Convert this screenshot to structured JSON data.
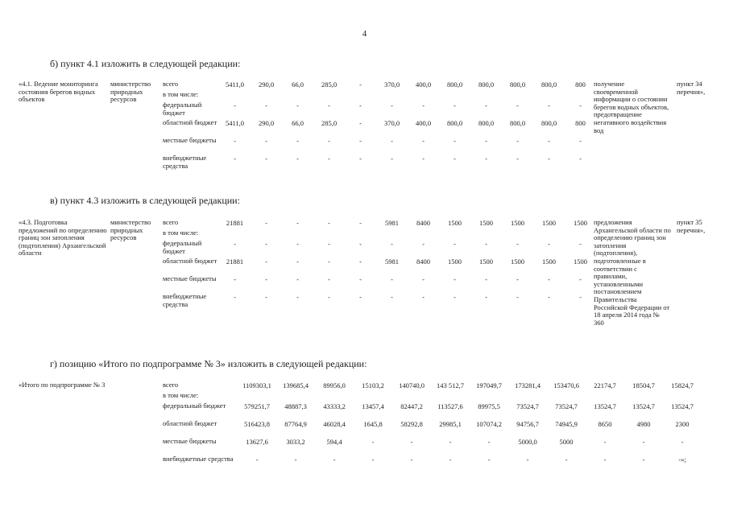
{
  "page_number": "4",
  "sections": [
    {
      "heading": "б) пункт 4.1 изложить в следующей редакции:"
    },
    {
      "heading": "в) пункт 4.3 изложить в следующей редакции:"
    },
    {
      "heading": "г) позицию «Итого по подпрограмме № 3» изложить в следующей редакции:"
    }
  ],
  "tables": [
    {
      "activity": "«4.1. Ведение мониторинга состояния берегов водных объектов",
      "executor": "министерство природных ресурсов",
      "rows": [
        {
          "label": "всего",
          "values": [
            "5411,0",
            "290,0",
            "66,0",
            "285,0",
            "-",
            "370,0",
            "400,0",
            "800,0",
            "800,0",
            "800,0",
            "800,0",
            "800"
          ]
        },
        {
          "label": "в том числе:",
          "values": []
        },
        {
          "label": "федеральный бюджет",
          "values": [
            "-",
            "-",
            "-",
            "-",
            "-",
            "-",
            "-",
            "-",
            "-",
            "-",
            "-",
            "-"
          ]
        },
        {
          "label": "областной бюджет",
          "values": [
            "5411,0",
            "290,0",
            "66,0",
            "285,0",
            "-",
            "370,0",
            "400,0",
            "800,0",
            "800,0",
            "800,0",
            "800,0",
            "800"
          ]
        },
        {
          "label": "местные бюджеты",
          "values": [
            "-",
            "-",
            "-",
            "-",
            "-",
            "-",
            "-",
            "-",
            "-",
            "-",
            "-",
            "-"
          ]
        },
        {
          "label": "внебюджетные средства",
          "values": [
            "-",
            "-",
            "-",
            "-",
            "-",
            "-",
            "-",
            "-",
            "-",
            "-",
            "-",
            "-"
          ]
        }
      ],
      "result": "получение своевременной информации о состоянии берегов водных объектов, предотвращение негативного воздействия вод",
      "item": "пункт 34 перечня»,"
    },
    {
      "activity": "«4.3. Подготовка предложений по определению границ зон затопления (подтопления) Архангельской области",
      "executor": "министерство природных ресурсов",
      "rows": [
        {
          "label": "всего",
          "values": [
            "21881",
            "-",
            "-",
            "-",
            "-",
            "5981",
            "8400",
            "1500",
            "1500",
            "1500",
            "1500",
            "1500"
          ]
        },
        {
          "label": "в том числе:",
          "values": []
        },
        {
          "label": "федеральный бюджет",
          "values": [
            "-",
            "-",
            "-",
            "-",
            "-",
            "-",
            "-",
            "-",
            "-",
            "-",
            "-",
            "-"
          ]
        },
        {
          "label": "областной бюджет",
          "values": [
            "21881",
            "-",
            "-",
            "-",
            "-",
            "5981",
            "8400",
            "1500",
            "1500",
            "1500",
            "1500",
            "1500"
          ]
        },
        {
          "label": "местные бюджеты",
          "values": [
            "-",
            "-",
            "-",
            "-",
            "-",
            "-",
            "-",
            "-",
            "-",
            "-",
            "-",
            "-"
          ]
        },
        {
          "label": "внебюджетные средства",
          "values": [
            "-",
            "-",
            "-",
            "-",
            "-",
            "-",
            "-",
            "-",
            "-",
            "-",
            "-",
            "-"
          ]
        }
      ],
      "result": "предложения Архангельской области по определению границ зон затопления (подтопления), подготовленные в соответствии с правилами, установленными постановлением Правительства Российской Федерации от 18 апреля 2014 года № 360",
      "item": "пункт 35 перечня»,"
    },
    {
      "activity": "«Итого по подпрограмме № 3",
      "executor": "",
      "rows": [
        {
          "label": "всего",
          "values": [
            "1109303,1",
            "139685,4",
            "89956,0",
            "15103,2",
            "140740,0",
            "143 512,7",
            "197049,7",
            "173281,4",
            "153470,6",
            "22174,7",
            "18504,7",
            "15824,7"
          ]
        },
        {
          "label": "в том числе:",
          "values": []
        },
        {
          "label": "федеральный бюджет",
          "values": [
            "579251,7",
            "48887,3",
            "43333,2",
            "13457,4",
            "82447,2",
            "113527,6",
            "89975,5",
            "73524,7",
            "73524,7",
            "13524,7",
            "13524,7",
            "13524,7"
          ]
        },
        {
          "label": "областной бюджет",
          "values": [
            "516423,8",
            "87764,9",
            "46028,4",
            "1645,8",
            "58292,8",
            "29985,1",
            "107074,2",
            "94756,7",
            "74945,9",
            "8650",
            "4980",
            "2300"
          ]
        },
        {
          "label": "местные бюджеты",
          "values": [
            "13627,6",
            "3033,2",
            "594,4",
            "-",
            "-",
            "-",
            "-",
            "5000,0",
            "5000",
            "-",
            "-",
            "-"
          ]
        },
        {
          "label": "внебюджетные средства",
          "values": [
            "-",
            "-",
            "-",
            "-",
            "-",
            "-",
            "-",
            "-",
            "-",
            "-",
            "-",
            "-»;"
          ]
        }
      ],
      "result": "",
      "item": ""
    }
  ]
}
